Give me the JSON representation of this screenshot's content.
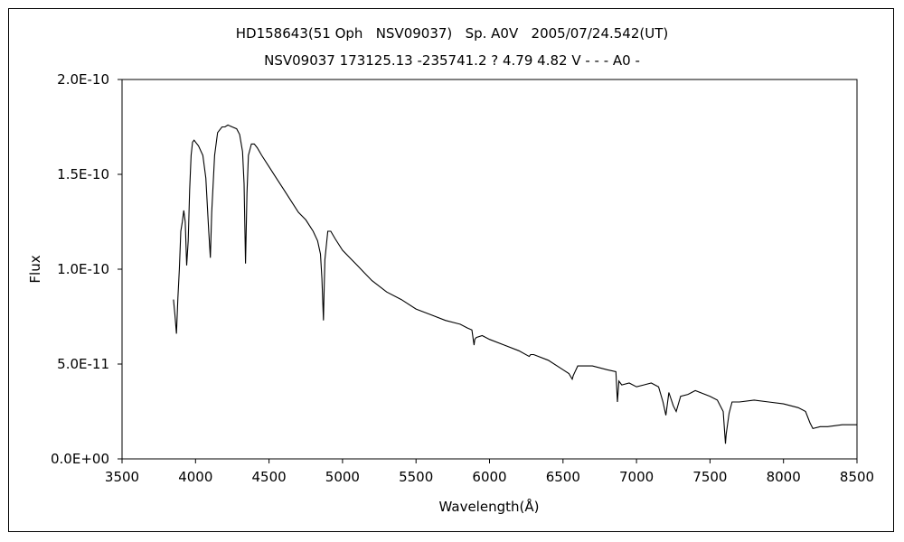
{
  "chart_data": {
    "type": "line",
    "title": "HD158643(51 Oph   NSV09037)   Sp. A0V   2005/07/24.542(UT)",
    "subtitle": "NSV09037 173125.13 -235741.2 ? 4.79 4.82 V - - - A0 -",
    "xlabel": "Wavelength(Å)",
    "ylabel": "Flux",
    "xlim": [
      3500,
      8500
    ],
    "ylim": [
      0,
      2e-10
    ],
    "xticks": [
      3500,
      4000,
      4500,
      5000,
      5500,
      6000,
      6500,
      7000,
      7500,
      8000,
      8500
    ],
    "xtick_labels": [
      "3500",
      "4000",
      "4500",
      "5000",
      "5500",
      "6000",
      "6500",
      "7000",
      "7500",
      "8000",
      "8500"
    ],
    "yticks": [
      0,
      5e-11,
      1e-10,
      1.5e-10,
      2e-10
    ],
    "ytick_labels": [
      "0.0E+00",
      "5.0E-11",
      "1.0E-10",
      "1.5E-10",
      "2.0E-10"
    ],
    "grid": false,
    "series": [
      {
        "name": "",
        "x": [
          3850,
          3860,
          3870,
          3880,
          3890,
          3900,
          3910,
          3920,
          3930,
          3940,
          3950,
          3960,
          3970,
          3980,
          3990,
          4000,
          4020,
          4050,
          4070,
          4090,
          4101,
          4110,
          4130,
          4150,
          4180,
          4200,
          4220,
          4250,
          4280,
          4300,
          4320,
          4330,
          4340,
          4350,
          4360,
          4380,
          4400,
          4420,
          4450,
          4500,
          4550,
          4600,
          4650,
          4700,
          4750,
          4800,
          4830,
          4850,
          4860,
          4870,
          4875,
          4880,
          4900,
          4920,
          4950,
          5000,
          5050,
          5100,
          5150,
          5200,
          5300,
          5400,
          5500,
          5600,
          5700,
          5800,
          5850,
          5880,
          5895,
          5900,
          5910,
          5950,
          6000,
          6100,
          6200,
          6270,
          6280,
          6300,
          6400,
          6500,
          6540,
          6563,
          6570,
          6600,
          6700,
          6800,
          6860,
          6870,
          6880,
          6900,
          6950,
          7000,
          7050,
          7100,
          7150,
          7180,
          7200,
          7220,
          7250,
          7270,
          7300,
          7350,
          7400,
          7500,
          7550,
          7590,
          7605,
          7610,
          7630,
          7650,
          7700,
          7800,
          7900,
          8000,
          8100,
          8150,
          8180,
          8200,
          8250,
          8300,
          8400,
          8500
        ],
        "y": [
          8.4e-11,
          7.6e-11,
          6.6e-11,
          8.5e-11,
          1e-10,
          1.2e-10,
          1.25e-10,
          1.31e-10,
          1.25e-10,
          1.02e-10,
          1.15e-10,
          1.42e-10,
          1.6e-10,
          1.67e-10,
          1.68e-10,
          1.67e-10,
          1.65e-10,
          1.6e-10,
          1.48e-10,
          1.2e-10,
          1.06e-10,
          1.3e-10,
          1.6e-10,
          1.72e-10,
          1.75e-10,
          1.75e-10,
          1.76e-10,
          1.75e-10,
          1.74e-10,
          1.71e-10,
          1.62e-10,
          1.45e-10,
          1.03e-10,
          1.4e-10,
          1.6e-10,
          1.66e-10,
          1.66e-10,
          1.64e-10,
          1.6e-10,
          1.54e-10,
          1.48e-10,
          1.42e-10,
          1.36e-10,
          1.3e-10,
          1.26e-10,
          1.2e-10,
          1.15e-10,
          1.08e-10,
          9.5e-11,
          7.3e-11,
          9e-11,
          1.05e-10,
          1.2e-10,
          1.2e-10,
          1.16e-10,
          1.1e-10,
          1.06e-10,
          1.02e-10,
          9.8e-11,
          9.4e-11,
          8.8e-11,
          8.4e-11,
          7.9e-11,
          7.6e-11,
          7.3e-11,
          7.1e-11,
          6.9e-11,
          6.8e-11,
          6e-11,
          6.3e-11,
          6.4e-11,
          6.5e-11,
          6.3e-11,
          6e-11,
          5.7e-11,
          5.4e-11,
          5.5e-11,
          5.5e-11,
          5.2e-11,
          4.7e-11,
          4.5e-11,
          4.2e-11,
          4.4e-11,
          4.9e-11,
          4.9e-11,
          4.7e-11,
          4.6e-11,
          3e-11,
          4.1e-11,
          3.9e-11,
          4e-11,
          3.8e-11,
          3.9e-11,
          4e-11,
          3.8e-11,
          3e-11,
          2.3e-11,
          3.5e-11,
          2.8e-11,
          2.5e-11,
          3.3e-11,
          3.4e-11,
          3.6e-11,
          3.3e-11,
          3.1e-11,
          2.5e-11,
          8e-12,
          1.3e-11,
          2.4e-11,
          3e-11,
          3e-11,
          3.1e-11,
          3e-11,
          2.9e-11,
          2.7e-11,
          2.5e-11,
          1.9e-11,
          1.6e-11,
          1.7e-11,
          1.7e-11,
          1.8e-11,
          1.8e-11
        ]
      }
    ]
  }
}
